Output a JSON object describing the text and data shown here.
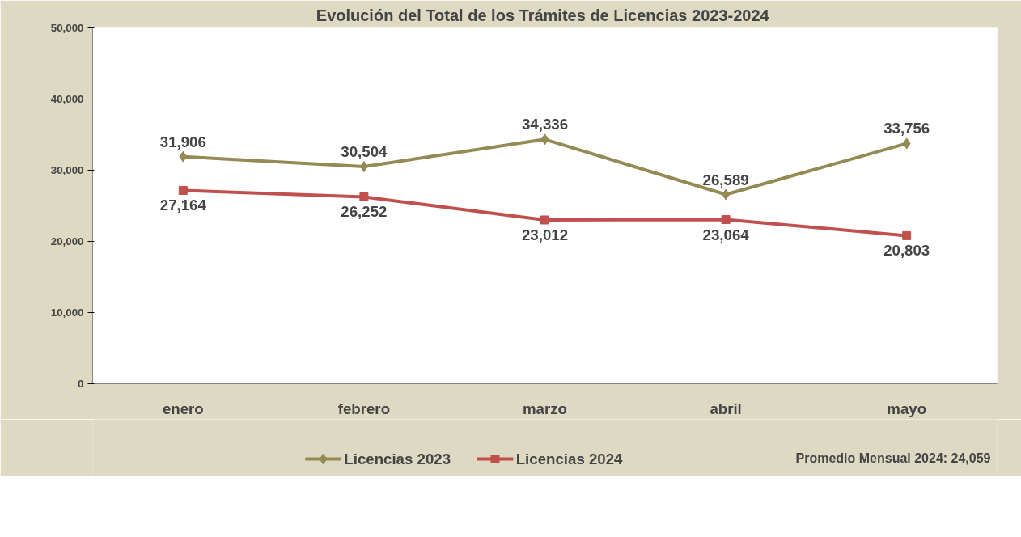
{
  "chart_data": {
    "type": "line",
    "title": "Evolución del Total de los Trámites de Licencias  2023-2024",
    "categories": [
      "enero",
      "febrero",
      "marzo",
      "abril",
      "mayo"
    ],
    "series": [
      {
        "name": "Licencias 2023",
        "color": "#948a54",
        "marker": "diamond",
        "values": [
          31906,
          30504,
          34336,
          26589,
          33756
        ],
        "value_labels": [
          "31,906",
          "30,504",
          "34,336",
          "26,589",
          "33,756"
        ]
      },
      {
        "name": "Licencias 2024",
        "color": "#c0504d",
        "marker": "square",
        "values": [
          27164,
          26252,
          23012,
          23064,
          20803
        ],
        "value_labels": [
          "27,164",
          "26,252",
          "23,012",
          "23,064",
          "20,803"
        ]
      }
    ],
    "ylim": [
      0,
      50000
    ],
    "yticks": [
      {
        "value": 0,
        "label": "0"
      },
      {
        "value": 10000,
        "label": "10,000"
      },
      {
        "value": 20000,
        "label": "20,000"
      },
      {
        "value": 30000,
        "label": "30,000"
      },
      {
        "value": 40000,
        "label": "40,000"
      },
      {
        "value": 50000,
        "label": "50,000"
      }
    ],
    "legend": "bottom",
    "grid": false,
    "annotations": [
      "Promedio Mensual 2024: 24,059"
    ]
  }
}
